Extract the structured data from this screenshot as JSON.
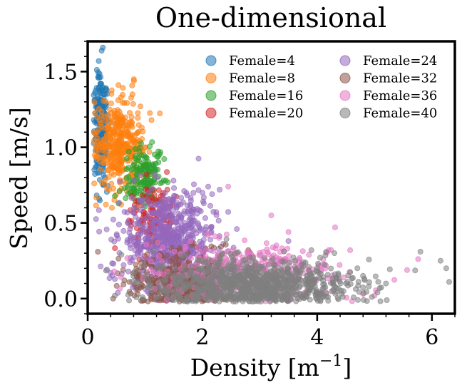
{
  "chart_data": {
    "type": "scatter",
    "title": "One-dimensional",
    "xlabel_text": "Density [m",
    "xlabel_sup": "−1",
    "xlabel_close": "]",
    "ylabel": "Speed [m/s]",
    "xlim": [
      0,
      6.4
    ],
    "ylim": [
      -0.1,
      1.7
    ],
    "xticks": [
      0,
      2,
      4,
      6
    ],
    "yticks": [
      0.0,
      0.5,
      1.0,
      1.5
    ],
    "xtick_labels": [
      "0",
      "2",
      "4",
      "6"
    ],
    "ytick_labels": [
      "0.0",
      "0.5",
      "1.0",
      "1.5"
    ],
    "legend_position": "top-right",
    "series": [
      {
        "name": "Female=4",
        "color": "#1f77b4",
        "cluster": {
          "x_center": 0.23,
          "x_spread": 0.06,
          "y_center": 1.12,
          "y_spread": 0.18,
          "count": 220
        },
        "outliers": [
          [
            0.2,
            1.46
          ],
          [
            0.22,
            1.42
          ],
          [
            0.18,
            0.83
          ],
          [
            0.24,
            1.38
          ],
          [
            0.27,
            0.88
          ]
        ]
      },
      {
        "name": "Female=8",
        "color": "#ff7f0e",
        "cluster": {
          "x_center": 0.55,
          "x_spread": 0.22,
          "y_center": 1.02,
          "y_spread": 0.14,
          "count": 380
        },
        "outliers": [
          [
            0.78,
            1.35
          ],
          [
            0.58,
            1.33
          ],
          [
            0.92,
            1.27
          ],
          [
            0.42,
            0.83
          ],
          [
            0.35,
            0.85
          ]
        ]
      },
      {
        "name": "Female=16",
        "color": "#2ca02c",
        "cluster": {
          "x_center": 0.98,
          "x_spread": 0.15,
          "y_center": 0.8,
          "y_spread": 0.11,
          "count": 170
        },
        "outliers": [
          [
            0.84,
            0.6
          ],
          [
            1.15,
            0.88
          ],
          [
            0.9,
            0.97
          ]
        ]
      },
      {
        "name": "Female=20",
        "color": "#d62728",
        "cluster": {
          "x_center": 1.12,
          "x_spread": 0.2,
          "y_center": 0.55,
          "y_spread": 0.12,
          "count": 130
        },
        "outliers": [
          [
            0.92,
            0.45
          ],
          [
            0.97,
            0.5
          ],
          [
            1.3,
            0.3
          ]
        ]
      },
      {
        "name": "Female=24",
        "color": "#9467bd",
        "cluster": {
          "x_center": 1.4,
          "x_spread": 0.4,
          "y_center": 0.38,
          "y_spread": 0.16,
          "count": 650
        },
        "outliers": [
          [
            2.1,
            0.74
          ],
          [
            2.3,
            0.72
          ],
          [
            1.05,
            0.16
          ],
          [
            1.1,
            0.08
          ],
          [
            1.1,
            0.04
          ],
          [
            3.5,
            0.38
          ],
          [
            2.6,
            0.46
          ],
          [
            1.8,
            0.58
          ]
        ]
      },
      {
        "name": "Female=32",
        "color": "#8c564b",
        "cluster": {
          "x_center": 1.7,
          "x_spread": 0.45,
          "y_center": 0.12,
          "y_spread": 0.09,
          "count": 500
        },
        "outliers": [
          [
            1.3,
            0.0
          ],
          [
            1.35,
            0.03
          ],
          [
            2.8,
            0.32
          ],
          [
            3.2,
            0.25
          ]
        ]
      },
      {
        "name": "Female=36",
        "color": "#e377c2",
        "cluster": {
          "x_center": 2.7,
          "x_spread": 0.8,
          "y_center": 0.18,
          "y_spread": 0.1,
          "count": 360
        },
        "outliers": [
          [
            2.45,
            0.74
          ],
          [
            3.2,
            0.55
          ],
          [
            3.5,
            0.44
          ],
          [
            4.8,
            0.03
          ],
          [
            5.0,
            0.02
          ],
          [
            4.2,
            0.32
          ]
        ]
      },
      {
        "name": "Female=40",
        "color": "#7f7f7f",
        "cluster": {
          "x_center": 2.9,
          "x_spread": 0.85,
          "y_center": 0.09,
          "y_spread": 0.08,
          "count": 950
        },
        "outliers": [
          [
            5.8,
            0.31
          ],
          [
            6.15,
            0.25
          ],
          [
            6.25,
            0.2
          ],
          [
            6.3,
            0.11
          ],
          [
            5.2,
            0.1
          ],
          [
            4.9,
            0.08
          ],
          [
            5.05,
            0.04
          ],
          [
            4.7,
            0.2
          ],
          [
            4.3,
            0.3
          ],
          [
            4.8,
            0.15
          ],
          [
            3.9,
            0.32
          ],
          [
            4.05,
            0.27
          ]
        ]
      }
    ]
  }
}
